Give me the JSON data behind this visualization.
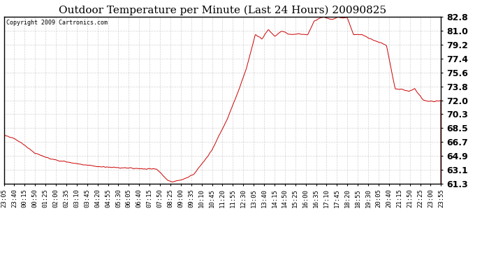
{
  "title": "Outdoor Temperature per Minute (Last 24 Hours) 20090825",
  "copyright_text": "Copyright 2009 Cartronics.com",
  "line_color": "#cc0000",
  "background_color": "#ffffff",
  "grid_color": "#c8c8c8",
  "ylim": [
    61.3,
    82.8
  ],
  "yticks": [
    61.3,
    63.1,
    64.9,
    66.7,
    68.5,
    70.3,
    72.0,
    73.8,
    75.6,
    77.4,
    79.2,
    81.0,
    82.8
  ],
  "xtick_labels": [
    "23:05",
    "23:40",
    "00:15",
    "00:50",
    "01:25",
    "02:00",
    "02:35",
    "03:10",
    "03:45",
    "04:20",
    "04:55",
    "05:30",
    "06:05",
    "06:40",
    "07:15",
    "07:50",
    "08:25",
    "09:00",
    "09:35",
    "10:10",
    "10:45",
    "11:20",
    "11:55",
    "12:30",
    "13:05",
    "13:40",
    "14:15",
    "14:50",
    "15:25",
    "16:00",
    "16:35",
    "17:10",
    "17:45",
    "18:20",
    "18:55",
    "19:30",
    "20:05",
    "20:40",
    "21:15",
    "21:50",
    "22:25",
    "23:00",
    "23:55"
  ],
  "title_fontsize": 11,
  "tick_fontsize": 6.5,
  "ytick_fontsize": 9,
  "copyright_fontsize": 6,
  "keypoints_x": [
    0.0,
    0.024,
    0.042,
    0.07,
    0.105,
    0.14,
    0.175,
    0.21,
    0.245,
    0.28,
    0.315,
    0.35,
    0.375,
    0.385,
    0.41,
    0.435,
    0.475,
    0.51,
    0.535,
    0.555,
    0.575,
    0.59,
    0.605,
    0.62,
    0.635,
    0.655,
    0.675,
    0.695,
    0.71,
    0.73,
    0.75,
    0.765,
    0.775,
    0.785,
    0.8,
    0.82,
    0.845,
    0.875,
    0.895,
    0.91,
    0.925,
    0.94,
    0.96,
    0.975,
    1.0
  ],
  "keypoints_y": [
    67.5,
    67.1,
    66.5,
    65.2,
    64.5,
    64.1,
    63.8,
    63.5,
    63.4,
    63.3,
    63.2,
    63.15,
    61.7,
    61.5,
    61.85,
    62.5,
    65.5,
    69.5,
    73.0,
    76.2,
    80.5,
    80.0,
    81.2,
    80.3,
    81.0,
    80.5,
    80.6,
    80.5,
    82.3,
    82.8,
    82.5,
    82.8,
    82.6,
    82.8,
    80.5,
    80.5,
    79.8,
    79.2,
    73.5,
    73.5,
    73.2,
    73.5,
    72.0,
    71.9,
    72.0
  ]
}
